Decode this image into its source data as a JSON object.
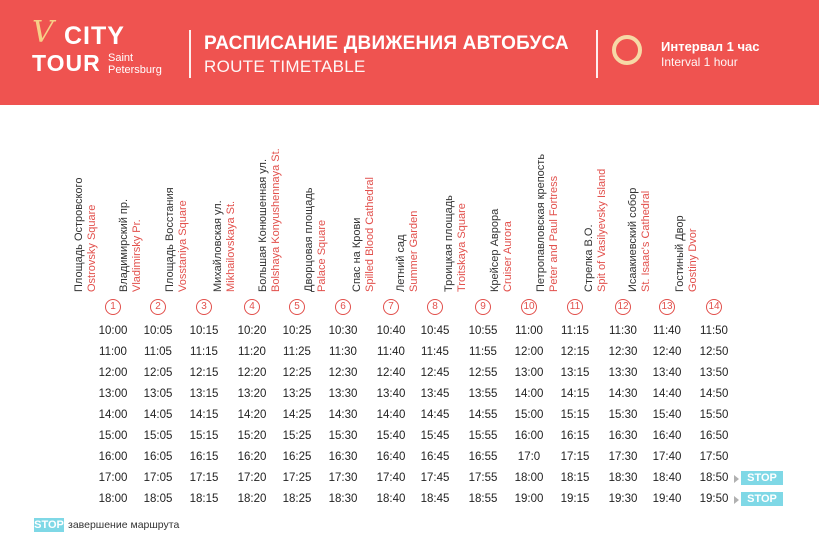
{
  "logo": {
    "city": "CITY",
    "tour": "TOUR",
    "sub_line1": "Saint",
    "sub_line2": "Petersburg"
  },
  "header": {
    "title_ru": "РАСПИСАНИЕ ДВИЖЕНИЯ АВТОБУСА",
    "title_en": "ROUTE TIMETABLE",
    "interval_ru": "Интервал 1 час",
    "interval_en": "Interval 1 hour"
  },
  "colors": {
    "brand": "#ef5350",
    "accent_text": "#e2504c",
    "stop_badge": "#7fd8e6",
    "ring": "#f6d9a6"
  },
  "stops": [
    {
      "num": "1",
      "ru": "Площадь Островского",
      "en": "Ostrovsky Square"
    },
    {
      "num": "2",
      "ru": "Владимирский пр.",
      "en": "Vladimirsky Pr."
    },
    {
      "num": "3",
      "ru": "Площадь Восстания",
      "en": "Vosstaniya Square"
    },
    {
      "num": "4",
      "ru": "Михайловская ул.",
      "en": "Mikhailovskaya St."
    },
    {
      "num": "5",
      "ru": "Большая Конюшенная ул.",
      "en": "Bolshaya Konyushennaya St."
    },
    {
      "num": "6",
      "ru": "Дворцовая площадь",
      "en": "Palace Square"
    },
    {
      "num": "7",
      "ru": "Спас на Крови",
      "en": "Spilled Blood Cathedral"
    },
    {
      "num": "8",
      "ru": "Летний сад",
      "en": "Summer Garden"
    },
    {
      "num": "9",
      "ru": "Троицкая площадь",
      "en": "Troitskaya Square"
    },
    {
      "num": "10",
      "ru": "Крейсер Аврора",
      "en": "Cruiser Aurora"
    },
    {
      "num": "11",
      "ru": "Петропавловская крепость",
      "en": "Peter and Paul Fortress"
    },
    {
      "num": "12",
      "ru": "Стрелка В.О.",
      "en": "Spit of Vasilyevsky Island"
    },
    {
      "num": "13",
      "ru": "Исаакиевский собор",
      "en": "St. Isaac's Cathedral"
    },
    {
      "num": "14",
      "ru": "Гостиный Двор",
      "en": "Gostiny Dvor"
    }
  ],
  "timetable": [
    [
      "10:00",
      "10:05",
      "10:15",
      "10:20",
      "10:25",
      "10:30",
      "10:40",
      "10:45",
      "10:55",
      "11:00",
      "11:15",
      "11:30",
      "11:40",
      "11:50"
    ],
    [
      "11:00",
      "11:05",
      "11:15",
      "11:20",
      "11:25",
      "11:30",
      "11:40",
      "11:45",
      "11:55",
      "12:00",
      "12:15",
      "12:30",
      "12:40",
      "12:50"
    ],
    [
      "12:00",
      "12:05",
      "12:15",
      "12:20",
      "12:25",
      "12:30",
      "12:40",
      "12:45",
      "12:55",
      "13:00",
      "13:15",
      "13:30",
      "13:40",
      "13:50"
    ],
    [
      "13:00",
      "13:05",
      "13:15",
      "13:20",
      "13:25",
      "13:30",
      "13:40",
      "13:45",
      "13:55",
      "14:00",
      "14:15",
      "14:30",
      "14:40",
      "14:50"
    ],
    [
      "14:00",
      "14:05",
      "14:15",
      "14:20",
      "14:25",
      "14:30",
      "14:40",
      "14:45",
      "14:55",
      "15:00",
      "15:15",
      "15:30",
      "15:40",
      "15:50"
    ],
    [
      "15:00",
      "15:05",
      "15:15",
      "15:20",
      "15:25",
      "15:30",
      "15:40",
      "15:45",
      "15:55",
      "16:00",
      "16:15",
      "16:30",
      "16:40",
      "16:50"
    ],
    [
      "16:00",
      "16:05",
      "16:15",
      "16:20",
      "16:25",
      "16:30",
      "16:40",
      "16:45",
      "16:55",
      "17:0",
      "17:15",
      "17:30",
      "17:40",
      "17:50"
    ],
    [
      "17:00",
      "17:05",
      "17:15",
      "17:20",
      "17:25",
      "17:30",
      "17:40",
      "17:45",
      "17:55",
      "18:00",
      "18:15",
      "18:30",
      "18:40",
      "18:50"
    ],
    [
      "18:00",
      "18:05",
      "18:15",
      "18:20",
      "18:25",
      "18:30",
      "18:40",
      "18:45",
      "18:55",
      "19:00",
      "19:15",
      "19:30",
      "19:40",
      "19:50"
    ]
  ],
  "stop_label": "STOP",
  "legend": {
    "badge": "STOP",
    "text": "завершение маршрута"
  }
}
